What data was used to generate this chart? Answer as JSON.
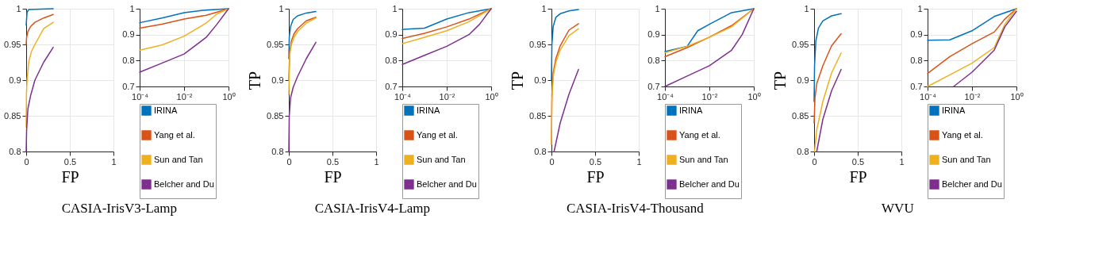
{
  "chart_data": [
    {
      "type": "line",
      "title": "CASIA-IrisV3-Lamp",
      "xlabel": "FP",
      "xlim": [
        0,
        1
      ],
      "xticks": [
        0,
        0.5,
        1
      ],
      "ylim": [
        0.8,
        1
      ],
      "yticks": [
        0.8,
        0.85,
        0.9,
        0.95,
        1
      ],
      "grid": true,
      "series": [
        {
          "color": "#0072bd",
          "x": [
            0,
            0.01,
            0.03,
            0.31
          ],
          "values": [
            0.977,
            0.995,
            0.999,
            1
          ]
        },
        {
          "color": "#d95319",
          "x": [
            0,
            0.005,
            0.02,
            0.05,
            0.1,
            0.2,
            0.31
          ],
          "values": [
            0.95,
            0.96,
            0.968,
            0.975,
            0.981,
            0.987,
            0.992
          ]
        },
        {
          "color": "#edb120",
          "x": [
            0,
            0.003,
            0.01,
            0.03,
            0.06,
            0.1,
            0.2,
            0.31
          ],
          "values": [
            0.834,
            0.88,
            0.9,
            0.926,
            0.94,
            0.95,
            0.972,
            0.981
          ]
        },
        {
          "color": "#7e2f8e",
          "x": [
            0,
            0.005,
            0.02,
            0.05,
            0.1,
            0.2,
            0.31
          ],
          "values": [
            0.8,
            0.83,
            0.86,
            0.878,
            0.9,
            0.925,
            0.946
          ]
        }
      ]
    },
    {
      "type": "line",
      "log": "x",
      "xlim": [
        0.0001,
        1
      ],
      "xticks": [
        {
          "value": 0.0001,
          "label": "10⁻⁴"
        },
        {
          "value": 0.01,
          "label": "10⁻²"
        },
        {
          "value": 1,
          "label": "10⁰"
        }
      ],
      "ylim": [
        0.7,
        1
      ],
      "yticks": [
        0.7,
        0.8,
        0.9,
        1
      ],
      "grid": true,
      "legend": "bottom",
      "series": [
        {
          "name": "IRINA",
          "color": "#0072bd",
          "x": [
            0.0001,
            0.001,
            0.01,
            0.1,
            1
          ],
          "values": [
            0.946,
            0.964,
            0.985,
            0.995,
            1
          ]
        },
        {
          "name": "Yang et al.",
          "color": "#d95319",
          "x": [
            0.0001,
            0.001,
            0.01,
            0.1,
            1
          ],
          "values": [
            0.925,
            0.94,
            0.96,
            0.975,
            1
          ]
        },
        {
          "name": "Sun and Tan",
          "color": "#edb120",
          "x": [
            0.0001,
            0.001,
            0.01,
            0.1,
            0.3,
            1
          ],
          "values": [
            0.84,
            0.86,
            0.894,
            0.945,
            0.98,
            1
          ]
        },
        {
          "name": "Belcher and Du",
          "color": "#7e2f8e",
          "x": [
            0.0001,
            0.001,
            0.01,
            0.1,
            0.3,
            1
          ],
          "values": [
            0.755,
            0.79,
            0.825,
            0.89,
            0.94,
            1
          ]
        }
      ]
    },
    {
      "type": "line",
      "title": "CASIA-IrisV4-Lamp",
      "xlabel": "FP",
      "ylabel": "TP",
      "xlim": [
        0,
        1
      ],
      "xticks": [
        0,
        0.5,
        1
      ],
      "ylim": [
        0.8,
        1
      ],
      "yticks": [
        0.8,
        0.85,
        0.9,
        0.95,
        1
      ],
      "grid": true,
      "series": [
        {
          "color": "#0072bd",
          "x": [
            0,
            0.005,
            0.02,
            0.05,
            0.1,
            0.2,
            0.31
          ],
          "values": [
            0.93,
            0.96,
            0.975,
            0.985,
            0.99,
            0.994,
            0.996
          ]
        },
        {
          "color": "#d95319",
          "x": [
            0,
            0.01,
            0.03,
            0.06,
            0.1,
            0.2,
            0.31
          ],
          "values": [
            0.9,
            0.94,
            0.955,
            0.965,
            0.972,
            0.983,
            0.988
          ]
        },
        {
          "color": "#edb120",
          "x": [
            0,
            0.01,
            0.03,
            0.06,
            0.1,
            0.2,
            0.31
          ],
          "values": [
            0.88,
            0.935,
            0.95,
            0.96,
            0.968,
            0.98,
            0.987
          ]
        },
        {
          "color": "#7e2f8e",
          "x": [
            0,
            0.005,
            0.02,
            0.05,
            0.1,
            0.2,
            0.31
          ],
          "values": [
            0.8,
            0.85,
            0.875,
            0.89,
            0.905,
            0.93,
            0.953
          ]
        }
      ]
    },
    {
      "type": "line",
      "log": "x",
      "xlim": [
        0.0001,
        1
      ],
      "xticks": [
        {
          "value": 0.0001,
          "label": "10⁻⁴"
        },
        {
          "value": 0.01,
          "label": "10⁻²"
        },
        {
          "value": 1,
          "label": "10⁰"
        }
      ],
      "ylim": [
        0.7,
        1
      ],
      "yticks": [
        0.7,
        0.8,
        0.9,
        1
      ],
      "grid": true,
      "legend": "bottom",
      "series": [
        {
          "name": "IRINA",
          "color": "#0072bd",
          "x": [
            0.0001,
            0.001,
            0.01,
            0.1,
            1
          ],
          "values": [
            0.92,
            0.925,
            0.96,
            0.985,
            1
          ]
        },
        {
          "name": "Yang et al.",
          "color": "#d95319",
          "x": [
            0.0001,
            0.001,
            0.01,
            0.1,
            1
          ],
          "values": [
            0.885,
            0.905,
            0.93,
            0.96,
            1
          ]
        },
        {
          "name": "Sun and Tan",
          "color": "#edb120",
          "x": [
            0.0001,
            0.001,
            0.01,
            0.1,
            1
          ],
          "values": [
            0.865,
            0.89,
            0.915,
            0.95,
            1
          ]
        },
        {
          "name": "Belcher and Du",
          "color": "#7e2f8e",
          "x": [
            0.0001,
            0.001,
            0.01,
            0.1,
            0.3,
            1
          ],
          "values": [
            0.785,
            0.82,
            0.855,
            0.9,
            0.94,
            1
          ]
        }
      ]
    },
    {
      "type": "line",
      "title": "CASIA-IrisV4-Thousand",
      "xlabel": "FP",
      "ylabel": "TP",
      "xlim": [
        0,
        1
      ],
      "xticks": [
        0,
        0.5,
        1
      ],
      "ylim": [
        0.8,
        1
      ],
      "yticks": [
        0.8,
        0.85,
        0.9,
        0.95,
        1
      ],
      "grid": true,
      "series": [
        {
          "color": "#0072bd",
          "x": [
            0,
            0.005,
            0.02,
            0.05,
            0.1,
            0.2,
            0.31
          ],
          "values": [
            0.9,
            0.95,
            0.975,
            0.988,
            0.993,
            0.997,
            0.999
          ]
        },
        {
          "color": "#d95319",
          "x": [
            0,
            0.005,
            0.02,
            0.05,
            0.1,
            0.2,
            0.31
          ],
          "values": [
            0.81,
            0.88,
            0.91,
            0.93,
            0.948,
            0.97,
            0.979
          ]
        },
        {
          "color": "#edb120",
          "x": [
            0,
            0.005,
            0.02,
            0.05,
            0.1,
            0.2,
            0.31
          ],
          "values": [
            0.81,
            0.87,
            0.905,
            0.925,
            0.942,
            0.962,
            0.972
          ]
        },
        {
          "color": "#7e2f8e",
          "x": [
            0.03,
            0.1,
            0.2,
            0.31
          ],
          "values": [
            0.8,
            0.84,
            0.88,
            0.915
          ]
        }
      ]
    },
    {
      "type": "line",
      "log": "x",
      "xlim": [
        0.0001,
        1
      ],
      "xticks": [
        {
          "value": 0.0001,
          "label": "10⁻⁴"
        },
        {
          "value": 0.01,
          "label": "10⁻²"
        },
        {
          "value": 1,
          "label": "10⁰"
        }
      ],
      "ylim": [
        0.7,
        1
      ],
      "yticks": [
        0.7,
        0.8,
        0.9,
        1
      ],
      "grid": true,
      "legend": "bottom",
      "series": [
        {
          "name": "IRINA",
          "color": "#0072bd",
          "x": [
            0.0001,
            0.001,
            0.003,
            0.01,
            0.1,
            1
          ],
          "values": [
            0.835,
            0.855,
            0.915,
            0.94,
            0.985,
            1
          ]
        },
        {
          "name": "Yang et al.",
          "color": "#d95319",
          "x": [
            0.0001,
            0.001,
            0.01,
            0.1,
            1
          ],
          "values": [
            0.815,
            0.85,
            0.89,
            0.935,
            1
          ]
        },
        {
          "name": "Sun and Tan",
          "color": "#edb120",
          "x": [
            0.0001,
            0.001,
            0.01,
            0.1,
            1
          ],
          "values": [
            0.83,
            0.855,
            0.89,
            0.93,
            1
          ]
        },
        {
          "name": "Belcher and Du",
          "color": "#7e2f8e",
          "x": [
            0.0001,
            0.001,
            0.01,
            0.1,
            0.3,
            1
          ],
          "values": [
            0.7,
            0.74,
            0.78,
            0.84,
            0.9,
            1
          ]
        }
      ]
    },
    {
      "type": "line",
      "title": "WVU",
      "xlabel": "FP",
      "ylabel": "TP",
      "xlim": [
        0,
        1
      ],
      "xticks": [
        0,
        0.5,
        1
      ],
      "ylim": [
        0.8,
        1
      ],
      "yticks": [
        0.8,
        0.85,
        0.9,
        0.95,
        1
      ],
      "grid": true,
      "series": [
        {
          "color": "#0072bd",
          "x": [
            0,
            0.005,
            0.02,
            0.05,
            0.1,
            0.2,
            0.31
          ],
          "values": [
            0.87,
            0.92,
            0.955,
            0.973,
            0.983,
            0.99,
            0.993
          ]
        },
        {
          "color": "#d95319",
          "x": [
            0,
            0.01,
            0.03,
            0.1,
            0.2,
            0.31
          ],
          "values": [
            0.84,
            0.875,
            0.895,
            0.92,
            0.948,
            0.965
          ]
        },
        {
          "color": "#edb120",
          "x": [
            0.005,
            0.03,
            0.1,
            0.2,
            0.31
          ],
          "values": [
            0.8,
            0.83,
            0.87,
            0.91,
            0.938
          ]
        },
        {
          "color": "#7e2f8e",
          "x": [
            0.03,
            0.1,
            0.2,
            0.31
          ],
          "values": [
            0.8,
            0.845,
            0.885,
            0.915
          ]
        }
      ]
    },
    {
      "type": "line",
      "log": "x",
      "xlim": [
        0.0001,
        1
      ],
      "xticks": [
        {
          "value": 0.0001,
          "label": "10⁻⁴"
        },
        {
          "value": 0.01,
          "label": "10⁻²"
        },
        {
          "value": 1,
          "label": "10⁰"
        }
      ],
      "ylim": [
        0.7,
        1
      ],
      "yticks": [
        0.7,
        0.8,
        0.9,
        1
      ],
      "grid": true,
      "legend": "bottom",
      "series": [
        {
          "name": "IRINA",
          "color": "#0072bd",
          "x": [
            0.0001,
            0.001,
            0.01,
            0.1,
            1
          ],
          "values": [
            0.878,
            0.88,
            0.915,
            0.97,
            1
          ]
        },
        {
          "name": "Yang et al.",
          "color": "#d95319",
          "x": [
            0.0001,
            0.001,
            0.01,
            0.1,
            0.3,
            1
          ],
          "values": [
            0.75,
            0.815,
            0.865,
            0.91,
            0.96,
            1
          ]
        },
        {
          "name": "Sun and Tan",
          "color": "#edb120",
          "x": [
            0.0001,
            0.001,
            0.01,
            0.1,
            0.3,
            1
          ],
          "values": [
            0.7,
            0.745,
            0.79,
            0.85,
            0.94,
            1
          ]
        },
        {
          "name": "Belcher and Du",
          "color": "#7e2f8e",
          "x": [
            0.0015,
            0.01,
            0.1,
            0.3,
            1
          ],
          "values": [
            0.7,
            0.755,
            0.84,
            0.93,
            0.99
          ]
        }
      ]
    }
  ]
}
